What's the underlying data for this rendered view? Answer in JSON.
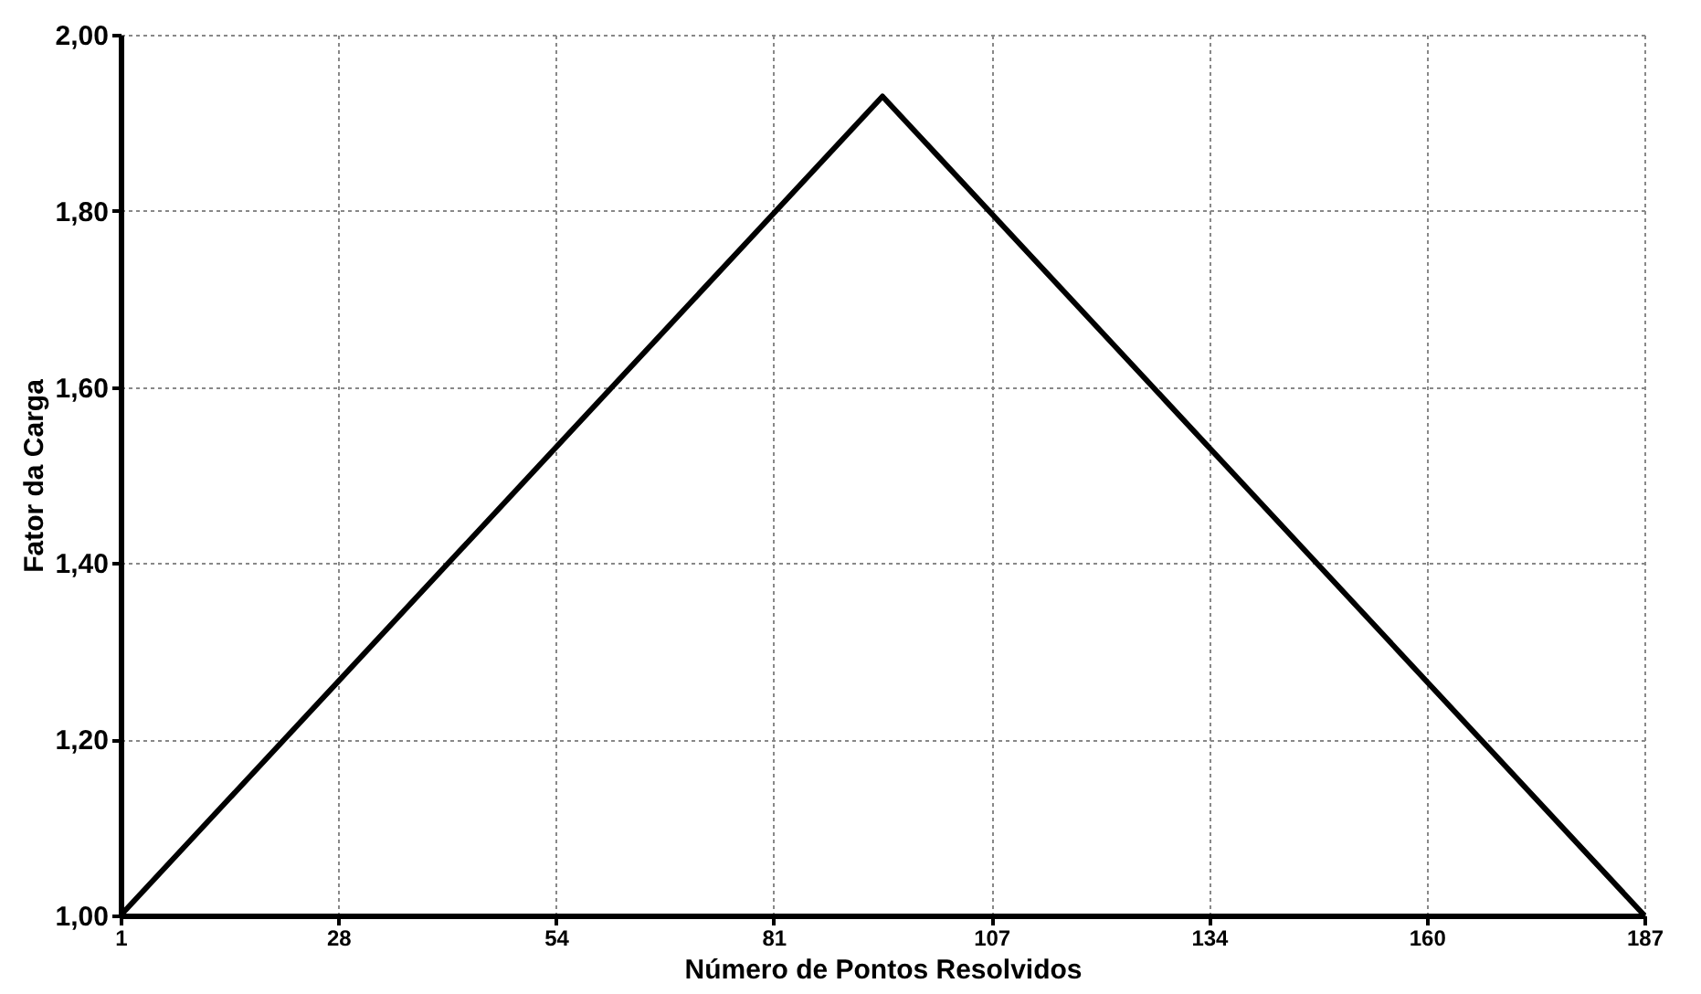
{
  "chart_data": {
    "type": "line",
    "xlabel": "Número de Pontos Resolvidos",
    "ylabel": "Fator da Carga",
    "series": [
      {
        "color": "#000000",
        "x": [
          1,
          94,
          187
        ],
        "values": [
          1.0,
          1.93,
          1.0
        ]
      }
    ],
    "xlim": [
      1,
      187
    ],
    "xticks": [
      {
        "value": 1,
        "label": "1"
      },
      {
        "value": 27.57,
        "label": "28"
      },
      {
        "value": 54.14,
        "label": "54"
      },
      {
        "value": 80.71,
        "label": "81"
      },
      {
        "value": 107.29,
        "label": "107"
      },
      {
        "value": 133.86,
        "label": "134"
      },
      {
        "value": 160.43,
        "label": "160"
      },
      {
        "value": 187,
        "label": "187"
      }
    ],
    "ylim": [
      1.0,
      2.0
    ],
    "yticks": [
      {
        "value": 1.0,
        "label": "1,00"
      },
      {
        "value": 1.2,
        "label": "1,20"
      },
      {
        "value": 1.4,
        "label": "1,40"
      },
      {
        "value": 1.6,
        "label": "1,60"
      },
      {
        "value": 1.8,
        "label": "1,80"
      },
      {
        "value": 2.0,
        "label": "2,00"
      }
    ],
    "grid": true,
    "marker": "none",
    "line_style": "solid"
  }
}
